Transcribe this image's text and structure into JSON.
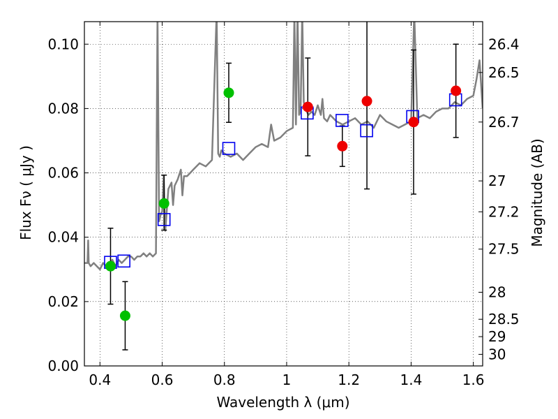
{
  "chart_data": {
    "type": "scatter",
    "xlabel": "Wavelength  λ (μm)",
    "ylabel": "Flux  Fν  ( μJy )",
    "ylabel_right": "Magnitude (AB)",
    "xlim": [
      0.35,
      1.63
    ],
    "ylim": [
      0.0,
      0.107
    ],
    "grid": true,
    "x_ticks": [
      0.4,
      0.6,
      0.8,
      1.0,
      1.2,
      1.4,
      1.6
    ],
    "x_tick_labels": [
      "0.4",
      "0.6",
      "0.8",
      "1",
      "1.2",
      "1.4",
      "1.6"
    ],
    "y_ticks": [
      0.0,
      0.02,
      0.04,
      0.06,
      0.08,
      0.1
    ],
    "y_tick_labels": [
      "0.00",
      "0.02",
      "0.04",
      "0.06",
      "0.08",
      "0.10"
    ],
    "mag_ticks": [
      {
        "label": "26.4",
        "flux": 0.1
      },
      {
        "label": "26.5",
        "flux": 0.0912
      },
      {
        "label": "26.7",
        "flux": 0.0758
      },
      {
        "label": "27",
        "flux": 0.0575
      },
      {
        "label": "27.2",
        "flux": 0.0479
      },
      {
        "label": "27.5",
        "flux": 0.0363
      },
      {
        "label": "28",
        "flux": 0.0229
      },
      {
        "label": "28.5",
        "flux": 0.0145
      },
      {
        "label": "29",
        "flux": 0.0091
      },
      {
        "label": "30",
        "flux": 0.0036
      }
    ],
    "series": [
      {
        "name": "SED model spectrum",
        "kind": "line",
        "color": "#808080",
        "x": [
          0.35,
          0.36,
          0.362,
          0.364,
          0.37,
          0.38,
          0.39,
          0.4,
          0.41,
          0.42,
          0.43,
          0.44,
          0.45,
          0.46,
          0.47,
          0.48,
          0.49,
          0.5,
          0.51,
          0.52,
          0.53,
          0.54,
          0.55,
          0.56,
          0.57,
          0.58,
          0.585,
          0.59,
          0.595,
          0.6,
          0.605,
          0.61,
          0.62,
          0.63,
          0.635,
          0.64,
          0.65,
          0.66,
          0.665,
          0.67,
          0.68,
          0.69,
          0.7,
          0.72,
          0.74,
          0.76,
          0.775,
          0.78,
          0.785,
          0.79,
          0.8,
          0.82,
          0.84,
          0.86,
          0.88,
          0.9,
          0.92,
          0.94,
          0.95,
          0.96,
          0.98,
          1.0,
          1.02,
          1.025,
          1.03,
          1.035,
          1.04,
          1.045,
          1.05,
          1.055,
          1.06,
          1.07,
          1.08,
          1.09,
          1.1,
          1.11,
          1.115,
          1.12,
          1.13,
          1.14,
          1.16,
          1.18,
          1.2,
          1.22,
          1.24,
          1.26,
          1.28,
          1.3,
          1.32,
          1.34,
          1.36,
          1.38,
          1.4,
          1.41,
          1.42,
          1.44,
          1.46,
          1.48,
          1.5,
          1.52,
          1.54,
          1.56,
          1.58,
          1.6,
          1.61,
          1.62,
          1.63
        ],
        "y": [
          0.032,
          0.032,
          0.039,
          0.032,
          0.031,
          0.032,
          0.031,
          0.03,
          0.032,
          0.031,
          0.032,
          0.033,
          0.031,
          0.033,
          0.032,
          0.033,
          0.034,
          0.034,
          0.033,
          0.034,
          0.034,
          0.035,
          0.034,
          0.035,
          0.034,
          0.035,
          0.11,
          0.045,
          0.047,
          0.048,
          0.059,
          0.042,
          0.055,
          0.057,
          0.05,
          0.056,
          0.058,
          0.061,
          0.053,
          0.059,
          0.059,
          0.06,
          0.061,
          0.063,
          0.062,
          0.064,
          0.11,
          0.066,
          0.065,
          0.067,
          0.066,
          0.065,
          0.066,
          0.064,
          0.066,
          0.068,
          0.069,
          0.068,
          0.075,
          0.07,
          0.071,
          0.073,
          0.074,
          0.11,
          0.075,
          0.11,
          0.078,
          0.079,
          0.11,
          0.082,
          0.08,
          0.078,
          0.079,
          0.078,
          0.081,
          0.078,
          0.083,
          0.077,
          0.076,
          0.078,
          0.076,
          0.075,
          0.076,
          0.077,
          0.075,
          0.076,
          0.074,
          0.078,
          0.076,
          0.075,
          0.074,
          0.075,
          0.076,
          0.11,
          0.077,
          0.078,
          0.077,
          0.079,
          0.08,
          0.08,
          0.082,
          0.081,
          0.083,
          0.084,
          0.089,
          0.095,
          0.08
        ]
      },
      {
        "name": "Green photometry",
        "kind": "points",
        "color": "#00c000",
        "x": [
          0.434,
          0.481,
          0.606,
          0.814
        ],
        "y": [
          0.031,
          0.0156,
          0.0505,
          0.0849
        ],
        "err_low": [
          0.0118,
          0.0106,
          0.0083,
          0.0092
        ],
        "err_high": [
          0.0118,
          0.0106,
          0.0088,
          0.0092
        ]
      },
      {
        "name": "Red photometry",
        "kind": "points",
        "color": "#ee0000",
        "x": [
          1.068,
          1.179,
          1.258,
          1.408,
          1.544
        ],
        "y": [
          0.0805,
          0.0683,
          0.0823,
          0.0758,
          0.0855
        ],
        "err_low": [
          0.0152,
          0.0063,
          0.0273,
          0.0224,
          0.0145
        ],
        "err_high": [
          0.0152,
          0.0063,
          0.0273,
          0.0224,
          0.0145
        ]
      },
      {
        "name": "Model synthetic photometry",
        "kind": "squares",
        "color": "#0000ee",
        "x": [
          0.434,
          0.477,
          0.606,
          0.814,
          1.066,
          1.178,
          1.257,
          1.405,
          1.543
        ],
        "y": [
          0.0322,
          0.0326,
          0.0455,
          0.0676,
          0.0786,
          0.0763,
          0.0731,
          0.0775,
          0.0827
        ]
      }
    ]
  }
}
